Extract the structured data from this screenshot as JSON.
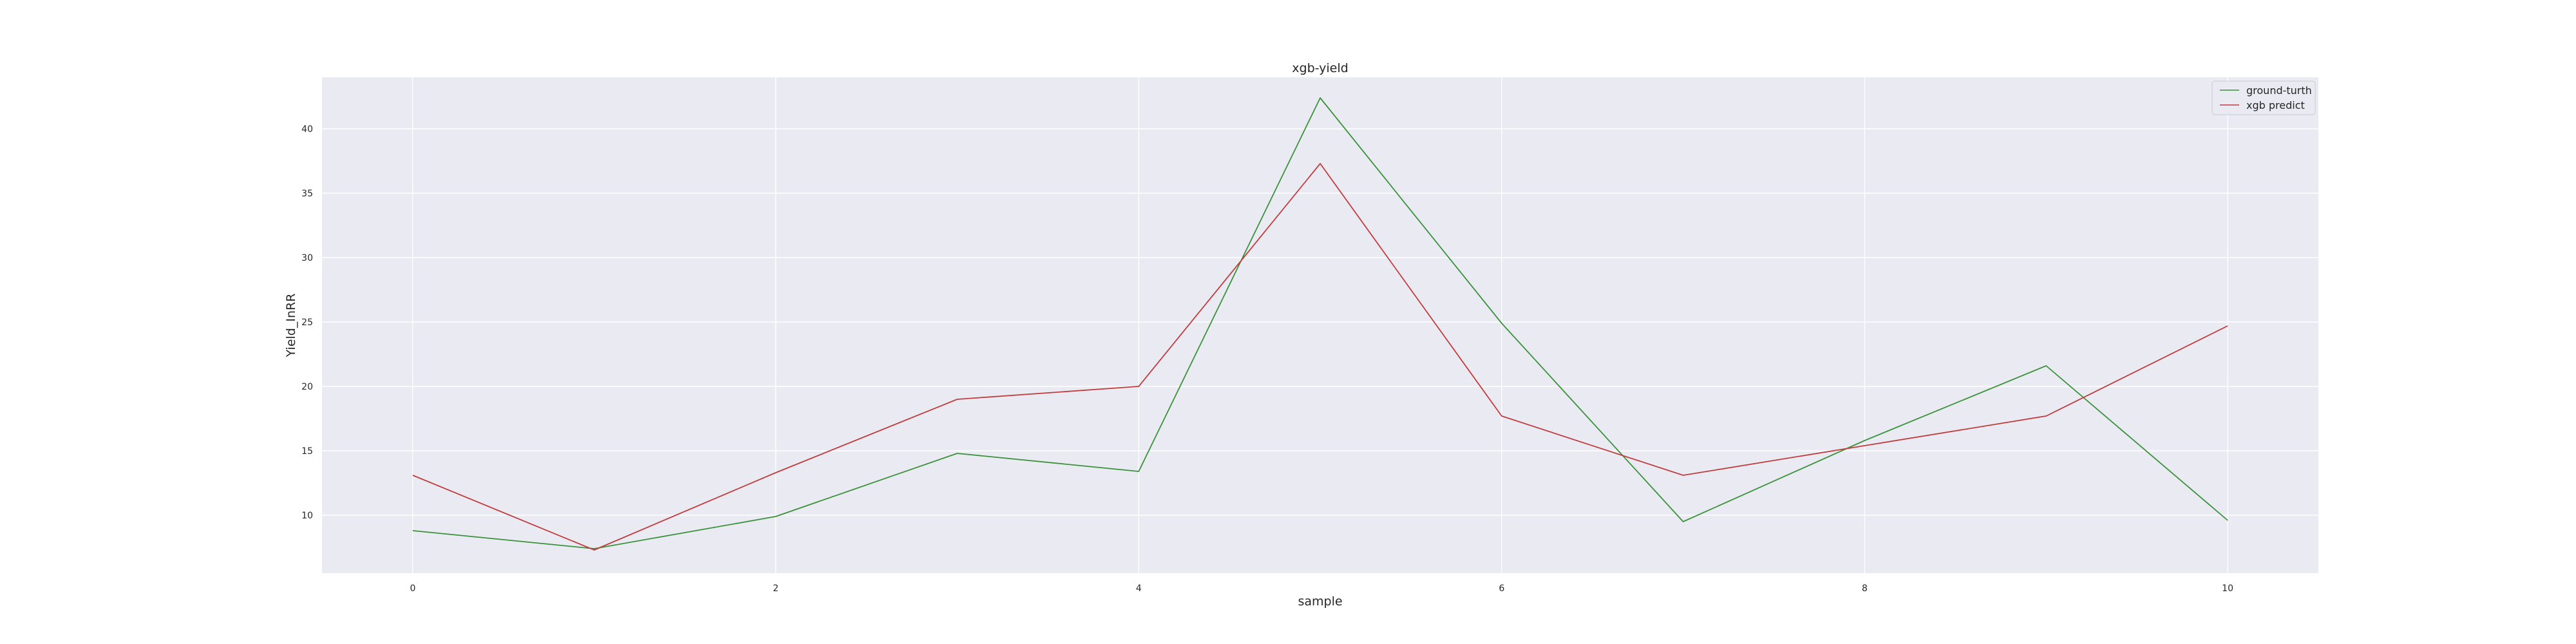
{
  "chart_data": {
    "type": "line",
    "title": "xgb-yield",
    "xlabel": "sample",
    "ylabel": "Yield_InRR",
    "x": [
      0,
      1,
      2,
      3,
      4,
      5,
      6,
      7,
      8,
      9,
      10
    ],
    "xlim": [
      -0.5,
      10.5
    ],
    "ylim": [
      5.5,
      44
    ],
    "xticks": [
      0,
      2,
      4,
      6,
      8,
      10
    ],
    "yticks": [
      10,
      15,
      20,
      25,
      30,
      35,
      40
    ],
    "grid": true,
    "legend_position": "top-right",
    "series": [
      {
        "name": "ground-turth",
        "color": "#3a923a",
        "values": [
          8.8,
          7.4,
          9.9,
          14.8,
          13.4,
          42.4,
          24.9,
          9.5,
          15.8,
          21.6,
          9.6
        ]
      },
      {
        "name": "xgb predict",
        "color": "#c03d3e",
        "values": [
          13.1,
          7.3,
          13.3,
          19.0,
          20.0,
          37.3,
          17.7,
          13.1,
          15.4,
          17.7,
          24.7
        ]
      }
    ],
    "plot_background": "#eaeaf2",
    "grid_color": "#ffffff"
  }
}
